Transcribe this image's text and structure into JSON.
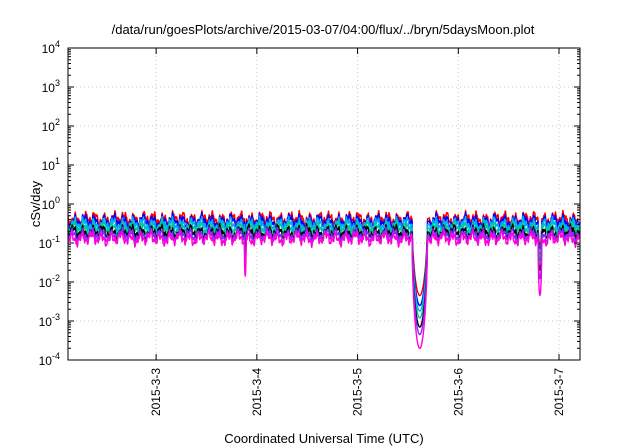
{
  "chart_data": {
    "type": "line",
    "title": "/data/run/goesPlots/archive/2015-03-07/04:00/flux/../bryn/5daysMoon.plot",
    "xlabel": "Coordinated Universal Time (UTC)",
    "ylabel": "cSv/day",
    "yscale": "log",
    "ylim": [
      0.0001,
      10000
    ],
    "y_ticks": [
      {
        "base": "10",
        "exp": "-4",
        "value": 0.0001
      },
      {
        "base": "10",
        "exp": "-3",
        "value": 0.001
      },
      {
        "base": "10",
        "exp": "-2",
        "value": 0.01
      },
      {
        "base": "10",
        "exp": "-1",
        "value": 0.1
      },
      {
        "base": "10",
        "exp": "0",
        "value": 1
      },
      {
        "base": "10",
        "exp": "1",
        "value": 10
      },
      {
        "base": "10",
        "exp": "2",
        "value": 100
      },
      {
        "base": "10",
        "exp": "3",
        "value": 1000
      },
      {
        "base": "10",
        "exp": "4",
        "value": 10000
      }
    ],
    "xlim": [
      "2015-03-02 03:00",
      "2015-03-07 05:00"
    ],
    "x_ticks": [
      {
        "label": "2015-3-3",
        "value": "2015-03-03 00:00"
      },
      {
        "label": "2015-3-4",
        "value": "2015-03-04 00:00"
      },
      {
        "label": "2015-3-5",
        "value": "2015-03-05 00:00"
      },
      {
        "label": "2015-3-6",
        "value": "2015-03-06 00:00"
      },
      {
        "label": "2015-3-7",
        "value": "2015-03-07 00:00"
      }
    ],
    "grid": true,
    "legend": "none",
    "series": [
      {
        "color": "#ff0000",
        "baseline": 0.42,
        "dips": [
          {
            "start": "2015-03-03 21:00",
            "end": "2015-03-03 21:30",
            "min": 0.25
          },
          {
            "start": "2015-03-05 13:00",
            "end": "2015-03-05 17:00",
            "min": 0.0045
          },
          {
            "start": "2015-03-06 19:00",
            "end": "2015-03-06 20:00",
            "min": 0.09
          }
        ]
      },
      {
        "color": "#0000ff",
        "baseline": 0.36,
        "dips": [
          {
            "start": "2015-03-03 21:00",
            "end": "2015-03-03 21:30",
            "min": 0.2
          },
          {
            "start": "2015-03-05 13:00",
            "end": "2015-03-05 17:00",
            "min": 0.0025
          },
          {
            "start": "2015-03-06 19:00",
            "end": "2015-03-06 20:00",
            "min": 0.07
          }
        ]
      },
      {
        "color": "#00aaff",
        "baseline": 0.3,
        "dips": [
          {
            "start": "2015-03-03 21:00",
            "end": "2015-03-03 21:30",
            "min": 0.15
          },
          {
            "start": "2015-03-05 13:00",
            "end": "2015-03-05 17:00",
            "min": 0.0018
          },
          {
            "start": "2015-03-06 19:00",
            "end": "2015-03-06 20:00",
            "min": 0.05
          }
        ]
      },
      {
        "color": "#00c8a0",
        "baseline": 0.24,
        "dips": [
          {
            "start": "2015-03-03 21:00",
            "end": "2015-03-03 21:30",
            "min": 0.1
          },
          {
            "start": "2015-03-05 13:00",
            "end": "2015-03-05 17:00",
            "min": 0.0012
          },
          {
            "start": "2015-03-06 19:00",
            "end": "2015-03-06 20:00",
            "min": 0.035
          }
        ]
      },
      {
        "color": "#000000",
        "baseline": 0.19,
        "dips": [
          {
            "start": "2015-03-03 21:00",
            "end": "2015-03-03 21:30",
            "min": 0.07
          },
          {
            "start": "2015-03-05 13:00",
            "end": "2015-03-05 17:00",
            "min": 0.0007
          },
          {
            "start": "2015-03-06 19:00",
            "end": "2015-03-06 20:00",
            "min": 0.02
          }
        ]
      },
      {
        "color": "#7a2cff",
        "baseline": 0.16,
        "dips": [
          {
            "start": "2015-03-03 21:00",
            "end": "2015-03-03 21:30",
            "min": 0.04
          },
          {
            "start": "2015-03-05 13:00",
            "end": "2015-03-05 17:00",
            "min": 0.00045
          },
          {
            "start": "2015-03-06 19:00",
            "end": "2015-03-06 20:00",
            "min": 0.012
          }
        ]
      },
      {
        "color": "#ff00dd",
        "baseline": 0.13,
        "dips": [
          {
            "start": "2015-03-03 21:00",
            "end": "2015-03-03 21:30",
            "min": 0.014
          },
          {
            "start": "2015-03-05 13:00",
            "end": "2015-03-05 17:00",
            "min": 0.0002
          },
          {
            "start": "2015-03-06 19:00",
            "end": "2015-03-06 20:00",
            "min": 0.0045
          }
        ]
      }
    ]
  }
}
